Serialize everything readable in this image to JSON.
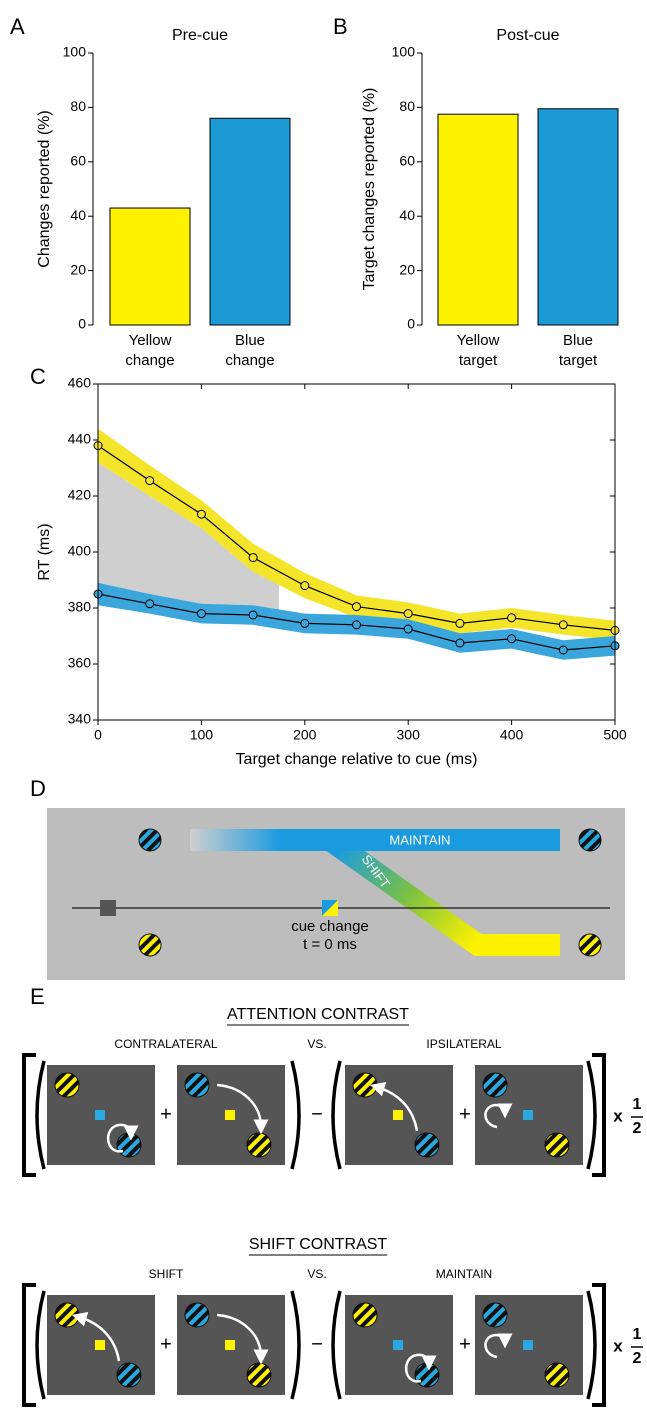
{
  "chart_data": [
    {
      "type": "bar",
      "panel_label": "A",
      "title": "Pre-cue",
      "categories": [
        "Yellow change",
        "Blue change"
      ],
      "values": [
        43,
        76
      ],
      "colors": [
        "#fff200",
        "#1c9ad6"
      ],
      "ylabel": "Changes reported (%)",
      "ylim": [
        0,
        100
      ],
      "yticks": [
        0,
        20,
        40,
        60,
        80,
        100
      ]
    },
    {
      "type": "bar",
      "panel_label": "B",
      "title": "Post-cue",
      "categories": [
        "Yellow target",
        "Blue target"
      ],
      "values": [
        77.5,
        79.5
      ],
      "colors": [
        "#fff200",
        "#1c9ad6"
      ],
      "ylabel": "Target changes reported (%)",
      "ylim": [
        0,
        100
      ],
      "yticks": [
        0,
        20,
        40,
        60,
        80,
        100
      ]
    },
    {
      "type": "line",
      "panel_label": "C",
      "xlabel": "Target change relative to cue (ms)",
      "ylabel": "RT (ms)",
      "x": [
        0,
        50,
        100,
        150,
        200,
        250,
        300,
        350,
        400,
        450,
        500
      ],
      "series": [
        {
          "color": "#f5e52a",
          "values": [
            438,
            425.5,
            413.5,
            398,
            388,
            380.5,
            378,
            374.5,
            376.5,
            374,
            372
          ],
          "errors": [
            6,
            5.5,
            5,
            5,
            4.5,
            4,
            4,
            3.5,
            3.5,
            3.5,
            3.5
          ]
        },
        {
          "color": "#3aa6dc",
          "values": [
            385,
            381.5,
            378,
            377.5,
            374.5,
            374,
            372.5,
            367.5,
            369,
            365,
            366.5
          ],
          "errors": [
            4,
            3.5,
            3.5,
            3.5,
            3.5,
            3.5,
            3.5,
            3.5,
            3.5,
            3.5,
            3.5
          ]
        }
      ],
      "shade_xlim": [
        0,
        175
      ],
      "shade_color": "#cfcfcf",
      "xlim": [
        0,
        500
      ],
      "xticks": [
        0,
        100,
        200,
        300,
        400,
        500
      ],
      "ylim": [
        340,
        460
      ],
      "yticks": [
        340,
        360,
        380,
        400,
        420,
        440,
        460
      ]
    }
  ],
  "panel_d": {
    "label": "D",
    "maintain": "MAINTAIN",
    "shift": "SHIFT",
    "cue_change": "cue change",
    "cue_time": "t = 0 ms"
  },
  "panel_e": {
    "label": "E",
    "contrasts": [
      {
        "title": "ATTENTION CONTRAST",
        "left": "CONTRALATERAL",
        "vs": "VS.",
        "right": "IPSILATERAL"
      },
      {
        "title": "SHIFT CONTRAST",
        "left": "SHIFT",
        "vs": "VS.",
        "right": "MAINTAIN"
      }
    ],
    "plus": "+",
    "minus": "−",
    "times": "x",
    "fraction": [
      "1",
      "2"
    ]
  }
}
